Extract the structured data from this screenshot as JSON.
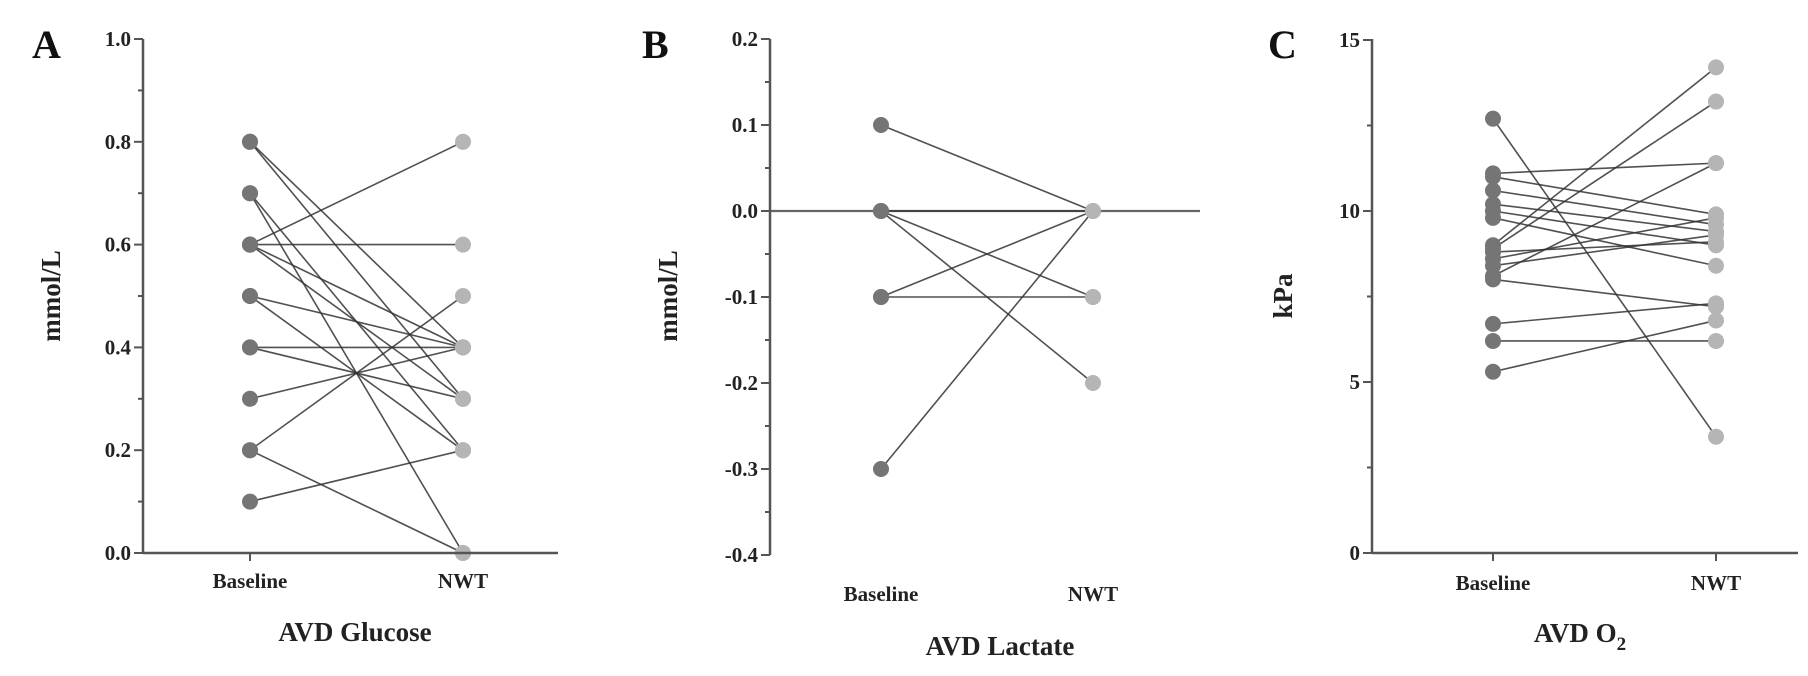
{
  "chart_data": [
    {
      "panel": "A",
      "type": "line",
      "title": "",
      "xlabel": "AVD Glucose",
      "ylabel": "mmol/L",
      "categories": [
        "Baseline",
        "NWT"
      ],
      "ylim": [
        0.0,
        1.0
      ],
      "yticks": [
        "0.0",
        "0.2",
        "0.4",
        "0.6",
        "0.8",
        "1.0"
      ],
      "grid": false,
      "legend": null,
      "series_pairs": [
        {
          "baseline": 0.8,
          "nwt": 0.4
        },
        {
          "baseline": 0.8,
          "nwt": 0.3
        },
        {
          "baseline": 0.7,
          "nwt": 0.2
        },
        {
          "baseline": 0.7,
          "nwt": 0.0
        },
        {
          "baseline": 0.6,
          "nwt": 0.8
        },
        {
          "baseline": 0.6,
          "nwt": 0.6
        },
        {
          "baseline": 0.6,
          "nwt": 0.4
        },
        {
          "baseline": 0.6,
          "nwt": 0.3
        },
        {
          "baseline": 0.5,
          "nwt": 0.4
        },
        {
          "baseline": 0.5,
          "nwt": 0.2
        },
        {
          "baseline": 0.4,
          "nwt": 0.4
        },
        {
          "baseline": 0.4,
          "nwt": 0.3
        },
        {
          "baseline": 0.3,
          "nwt": 0.4
        },
        {
          "baseline": 0.2,
          "nwt": 0.5
        },
        {
          "baseline": 0.2,
          "nwt": 0.0
        },
        {
          "baseline": 0.1,
          "nwt": 0.2
        }
      ]
    },
    {
      "panel": "B",
      "type": "line",
      "title": "",
      "xlabel": "AVD Lactate",
      "ylabel": "mmol/L",
      "categories": [
        "Baseline",
        "NWT"
      ],
      "ylim": [
        -0.4,
        0.2
      ],
      "yticks": [
        "-0.4",
        "-0.3",
        "-0.2",
        "-0.1",
        "0.0",
        "0.1",
        "0.2"
      ],
      "grid": false,
      "legend": null,
      "zero_line": true,
      "series_pairs": [
        {
          "baseline": 0.1,
          "nwt": 0.0
        },
        {
          "baseline": 0.0,
          "nwt": 0.0
        },
        {
          "baseline": 0.0,
          "nwt": -0.1
        },
        {
          "baseline": 0.0,
          "nwt": -0.2
        },
        {
          "baseline": -0.1,
          "nwt": 0.0
        },
        {
          "baseline": -0.1,
          "nwt": -0.1
        },
        {
          "baseline": -0.3,
          "nwt": 0.0
        }
      ]
    },
    {
      "panel": "C",
      "type": "line",
      "title": "",
      "xlabel": "AVD O2",
      "ylabel": "kPa",
      "categories": [
        "Baseline",
        "NWT"
      ],
      "ylim": [
        0,
        15
      ],
      "yticks": [
        "0",
        "5",
        "10",
        "15"
      ],
      "grid": false,
      "legend": null,
      "series_pairs": [
        {
          "baseline": 12.7,
          "nwt": 3.4
        },
        {
          "baseline": 11.1,
          "nwt": 11.4
        },
        {
          "baseline": 11.0,
          "nwt": 9.9
        },
        {
          "baseline": 10.6,
          "nwt": 9.6
        },
        {
          "baseline": 10.2,
          "nwt": 9.4
        },
        {
          "baseline": 10.0,
          "nwt": 9.0
        },
        {
          "baseline": 9.8,
          "nwt": 8.4
        },
        {
          "baseline": 9.0,
          "nwt": 14.2
        },
        {
          "baseline": 8.9,
          "nwt": 13.2
        },
        {
          "baseline": 8.8,
          "nwt": 9.1
        },
        {
          "baseline": 8.6,
          "nwt": 9.8
        },
        {
          "baseline": 8.4,
          "nwt": 9.3
        },
        {
          "baseline": 8.1,
          "nwt": 11.4
        },
        {
          "baseline": 8.0,
          "nwt": 7.2
        },
        {
          "baseline": 6.7,
          "nwt": 7.3
        },
        {
          "baseline": 6.2,
          "nwt": 6.2
        },
        {
          "baseline": 5.3,
          "nwt": 6.8
        }
      ]
    }
  ],
  "panels": {
    "A": {
      "letter": "A",
      "xlabel": "AVD Glucose",
      "ylabel": "mmol/L",
      "cat1": "Baseline",
      "cat2": "NWT"
    },
    "B": {
      "letter": "B",
      "xlabel": "AVD Lactate",
      "ylabel": "mmol/L",
      "cat1": "Baseline",
      "cat2": "NWT"
    },
    "C": {
      "letter": "C",
      "xlabel_main": "AVD O",
      "xlabel_sub": "2",
      "ylabel": "kPa",
      "cat1": "Baseline",
      "cat2": "NWT"
    }
  },
  "colors": {
    "baseline_point": "#757575",
    "nwt_point": "#b5b5b5",
    "line": "#333333",
    "axis": "#555555"
  }
}
